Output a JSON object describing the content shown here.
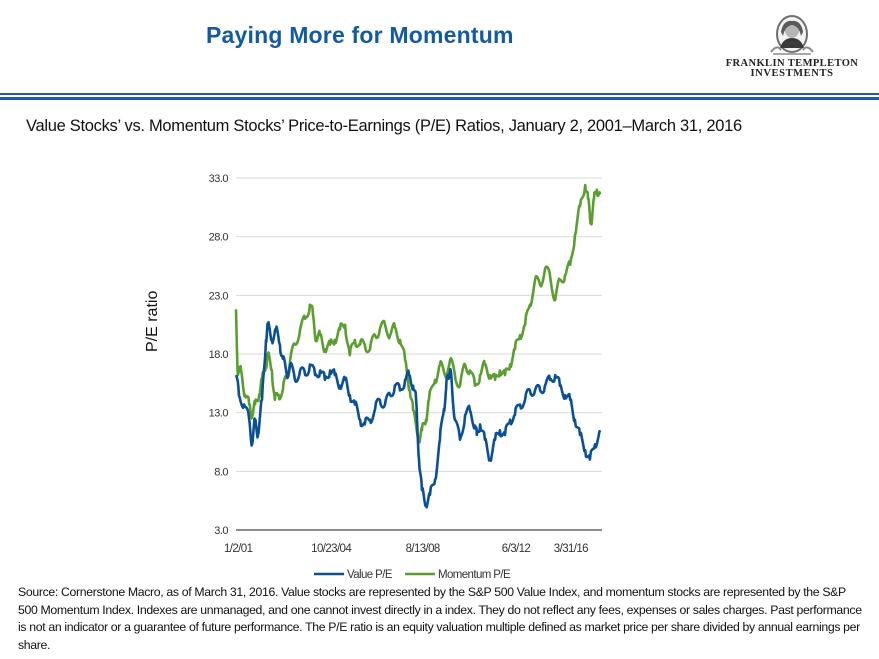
{
  "header": {
    "title": "Paying More for Momentum",
    "logo": {
      "line1": "FRANKLIN TEMPLETON",
      "line2": "INVESTMENTS",
      "icon": "benjamin-franklin-portrait-icon"
    }
  },
  "colors": {
    "title": "#135ba0",
    "rule": "#1f5c99",
    "value_series": "#0b4f95",
    "momentum_series": "#5a9e2f",
    "gridline": "#d9d9d9",
    "axis": "#8c8c8c"
  },
  "chart_data": {
    "type": "line",
    "title": "Value Stocks’ vs. Momentum Stocks’ Price-to-Earnings (P/E) Ratios, January 2, 2001–March 31, 2016",
    "xlabel": "",
    "ylabel": "P/E ratio",
    "ylim": [
      3.0,
      33.0
    ],
    "yticks": [
      "3.0",
      "8.0",
      "13.0",
      "18.0",
      "23.0",
      "28.0",
      "33.0"
    ],
    "xtick_labels": [
      {
        "label": "1/2/01",
        "pos": 0.0
      },
      {
        "label": "10/23/04",
        "pos": 0.26
      },
      {
        "label": "8/13/08",
        "pos": 0.51
      },
      {
        "label": "6/3/12",
        "pos": 0.765
      },
      {
        "label": "3/31/16",
        "pos": 0.915
      }
    ],
    "grid": true,
    "legend_position": "bottom",
    "x_note": "x is normalized position along the time axis (0 = 1/2/01, 1 = end of series)",
    "series": [
      {
        "name": "Value P/E",
        "x": [
          0.0,
          0.008,
          0.022,
          0.036,
          0.044,
          0.052,
          0.06,
          0.071,
          0.082,
          0.087,
          0.098,
          0.109,
          0.12,
          0.128,
          0.139,
          0.148,
          0.161,
          0.175,
          0.189,
          0.202,
          0.216,
          0.23,
          0.243,
          0.257,
          0.27,
          0.284,
          0.298,
          0.311,
          0.325,
          0.339,
          0.352,
          0.366,
          0.38,
          0.393,
          0.407,
          0.421,
          0.434,
          0.448,
          0.462,
          0.473,
          0.484,
          0.492,
          0.5,
          0.508,
          0.519,
          0.53,
          0.544,
          0.557,
          0.568,
          0.574,
          0.579,
          0.585,
          0.59,
          0.598,
          0.612,
          0.626,
          0.639,
          0.653,
          0.658,
          0.667,
          0.68,
          0.694,
          0.708,
          0.721,
          0.735,
          0.749,
          0.762,
          0.776,
          0.79,
          0.803,
          0.817,
          0.831,
          0.844,
          0.858,
          0.872,
          0.885,
          0.899,
          0.913,
          0.926,
          0.94,
          0.954,
          0.967,
          0.981,
          0.995
        ],
        "values": [
          16.2,
          14.5,
          13.7,
          12.4,
          10.3,
          12.4,
          11.1,
          14.1,
          19.2,
          20.5,
          19.2,
          20.1,
          18.8,
          17.6,
          16.2,
          17.1,
          15.8,
          16.6,
          16.2,
          17.1,
          16.2,
          16.6,
          15.8,
          16.6,
          16.2,
          15.3,
          15.8,
          14.5,
          13.7,
          12.4,
          12.0,
          12.4,
          13.3,
          14.1,
          13.7,
          14.5,
          15.3,
          14.9,
          15.8,
          16.2,
          15.3,
          14.1,
          9.0,
          6.4,
          5.2,
          6.0,
          7.3,
          10.7,
          13.3,
          15.0,
          16.2,
          16.6,
          15.3,
          12.4,
          10.7,
          12.8,
          13.2,
          11.9,
          11.1,
          12.0,
          10.7,
          9.0,
          10.7,
          11.5,
          11.1,
          12.4,
          12.8,
          13.7,
          14.1,
          14.9,
          14.9,
          14.9,
          15.3,
          15.8,
          16.2,
          15.3,
          14.5,
          14.1,
          12.4,
          11.1,
          9.8,
          9.0,
          10.3,
          11.5
        ]
      },
      {
        "name": "Momentum P/E",
        "x": [
          0.0,
          0.005,
          0.014,
          0.025,
          0.036,
          0.044,
          0.052,
          0.063,
          0.071,
          0.082,
          0.087,
          0.098,
          0.106,
          0.117,
          0.128,
          0.139,
          0.148,
          0.161,
          0.175,
          0.189,
          0.202,
          0.21,
          0.219,
          0.23,
          0.243,
          0.257,
          0.27,
          0.284,
          0.298,
          0.311,
          0.325,
          0.339,
          0.352,
          0.366,
          0.38,
          0.393,
          0.407,
          0.421,
          0.434,
          0.448,
          0.462,
          0.475,
          0.484,
          0.5,
          0.508,
          0.519,
          0.527,
          0.544,
          0.557,
          0.571,
          0.585,
          0.598,
          0.612,
          0.626,
          0.639,
          0.653,
          0.667,
          0.68,
          0.694,
          0.708,
          0.721,
          0.735,
          0.749,
          0.762,
          0.776,
          0.79,
          0.803,
          0.817,
          0.831,
          0.844,
          0.858,
          0.872,
          0.885,
          0.899,
          0.913,
          0.926,
          0.94,
          0.954,
          0.962,
          0.97,
          0.978,
          0.986,
          0.995
        ],
        "values": [
          21.8,
          16.2,
          16.6,
          14.5,
          13.7,
          12.8,
          13.7,
          14.5,
          15.8,
          17.1,
          17.9,
          16.6,
          14.1,
          14.5,
          14.9,
          16.2,
          17.5,
          18.8,
          20.1,
          21.0,
          22.2,
          21.4,
          19.2,
          19.6,
          18.4,
          18.8,
          19.2,
          20.1,
          20.5,
          17.9,
          19.2,
          18.8,
          18.8,
          18.4,
          19.6,
          20.1,
          20.5,
          19.6,
          20.3,
          19.2,
          17.5,
          14.9,
          13.2,
          10.7,
          11.5,
          12.4,
          14.1,
          15.8,
          17.1,
          16.2,
          17.5,
          16.2,
          15.3,
          17.1,
          16.6,
          15.3,
          16.2,
          17.1,
          16.2,
          15.8,
          16.6,
          16.2,
          17.1,
          18.4,
          19.6,
          20.5,
          22.2,
          24.3,
          23.9,
          25.2,
          24.7,
          22.6,
          24.3,
          24.7,
          25.6,
          28.1,
          30.6,
          32.4,
          31.2,
          29.1,
          31.2,
          32.0,
          31.6
        ]
      }
    ]
  },
  "legend": [
    {
      "label": "Value P/E",
      "color": "#0b4f95"
    },
    {
      "label": "Momentum P/E",
      "color": "#5a9e2f"
    }
  ],
  "footnote": "Source: Cornerstone Macro, as of March 31, 2016. Value stocks are represented by the S&P 500 Value Index, and momentum stocks are represented by the S&P 500 Momentum Index. Indexes are unmanaged, and one cannot invest directly in a index. They do not reflect any fees, expenses or sales charges. Past performance is not an indicator or a guarantee of future performance. The P/E ratio is an equity valuation multiple defined as market price per share divided by annual earnings per share."
}
